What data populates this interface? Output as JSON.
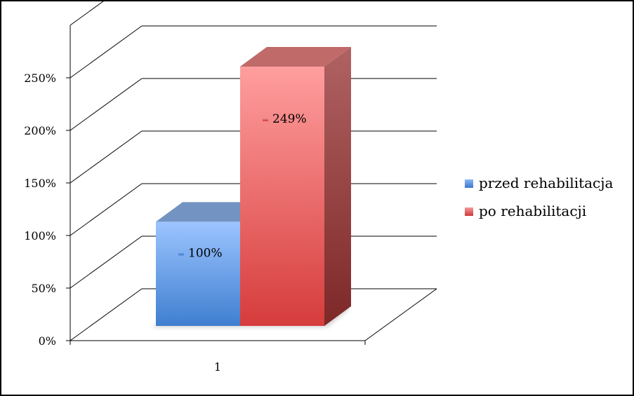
{
  "chart_data": {
    "type": "bar",
    "categories": [
      "1"
    ],
    "series": [
      {
        "name": "przed rehabilitacja",
        "values": [
          100
        ],
        "label": "100%",
        "color": "#4f8fdc"
      },
      {
        "name": "po rehabilitacji",
        "values": [
          249
        ],
        "label": "249%",
        "color": "#e05a5a"
      }
    ],
    "ylim": [
      0,
      250
    ],
    "yticks": [
      {
        "value": 0,
        "label": "0%"
      },
      {
        "value": 50,
        "label": "50%"
      },
      {
        "value": 100,
        "label": "100%"
      },
      {
        "value": 150,
        "label": "150%"
      },
      {
        "value": 200,
        "label": "200%"
      },
      {
        "value": 250,
        "label": "250%"
      }
    ],
    "xlabel": "",
    "ylabel": "",
    "title": "",
    "grid": true,
    "legend": "right",
    "three_d": true
  }
}
